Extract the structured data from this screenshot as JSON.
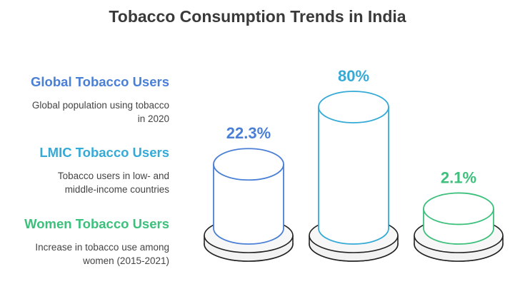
{
  "chart_data": {
    "type": "bar",
    "title": "Tobacco Consumption Trends in India",
    "categories": [
      "Global Tobacco Users",
      "LMIC Tobacco Users",
      "Women Tobacco Users"
    ],
    "descriptions": [
      [
        "Global population using tobacco",
        "in 2020"
      ],
      [
        "Tobacco users in low- and",
        "middle-income countries"
      ],
      [
        "Increase in tobacco use among",
        "women (2015-2021)"
      ]
    ],
    "values": [
      22.3,
      80,
      2.1
    ],
    "value_labels": [
      "22.3%",
      "80%",
      "2.1%"
    ],
    "colors": [
      "#4a7fd6",
      "#35aad6",
      "#3cc07c"
    ],
    "ylim": [
      0,
      100
    ]
  }
}
